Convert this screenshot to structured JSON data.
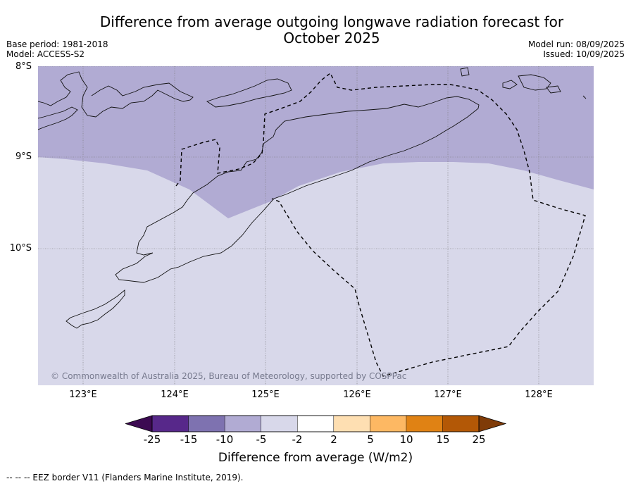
{
  "title_line1": "Difference from average outgoing longwave radiation forecast for",
  "title_line2": "October 2025",
  "meta_left": [
    "Base period: 1981-2018",
    "Model: ACCESS-S2"
  ],
  "meta_right": [
    "Model run: 08/09/2025",
    "Issued: 10/09/2025"
  ],
  "map": {
    "lat_labels": [
      "8°S",
      "9°S",
      "10°S"
    ],
    "lon_labels": [
      "123°E",
      "124°E",
      "125°E",
      "126°E",
      "127°E",
      "128°E"
    ],
    "fill_colors": {
      "-10_to_-5": "#b1abd3",
      "-5_to_-2": "#d8d8ea"
    },
    "credit": "© Commonwealth of Australia 2025, Bureau of Meteorology, supported by COSPPac"
  },
  "colorbar": {
    "ticks": [
      "-25",
      "-15",
      "-10",
      "-5",
      "-2",
      "2",
      "5",
      "10",
      "15",
      "25"
    ],
    "colors": [
      "#3c0a52",
      "#57288a",
      "#7e72b0",
      "#b1abd3",
      "#d8d8ea",
      "#ffffff",
      "#fedfb2",
      "#fdb863",
      "#e08214",
      "#b35806",
      "#7f3b08"
    ],
    "label": "Difference from average (W/m2)"
  },
  "footnote": "-- -- -- EEZ border V11 (Flanders Marine Institute, 2019)."
}
